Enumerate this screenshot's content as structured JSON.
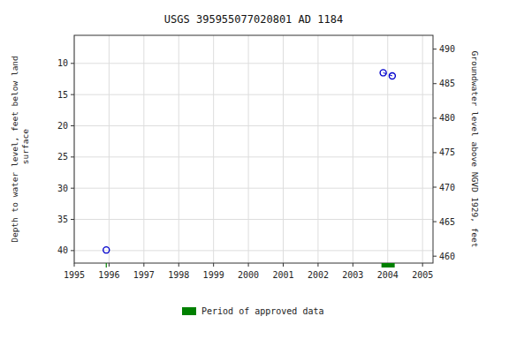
{
  "chart_data": {
    "type": "scatter",
    "title": "USGS 395955077020801 AD  1184",
    "y_label": "Depth to water level, feet below land\n surface",
    "y2_label": "Groundwater level above NGVD 1929, feet",
    "xlim": [
      1995.0,
      2005.3
    ],
    "xticks": [
      1995,
      1996,
      1997,
      1998,
      1999,
      2000,
      2001,
      2002,
      2003,
      2004,
      2005
    ],
    "ylim": [
      42.0,
      5.5
    ],
    "yticks": [
      10,
      15,
      20,
      25,
      30,
      35,
      40
    ],
    "y2lim": [
      459.0,
      492.0
    ],
    "y2ticks": [
      490,
      485,
      480,
      475,
      470,
      465,
      460
    ],
    "grid": true,
    "legend": "bottom",
    "series": [
      {
        "x": [
          1995.92,
          2003.87,
          2004.13
        ],
        "values": [
          39.9,
          11.5,
          12.0
        ],
        "color": "#0000cc",
        "marker": "circle"
      },
      {
        "type": "line",
        "x": [
          2003.87,
          2004.13
        ],
        "values": [
          11.5,
          12.0
        ],
        "color": "#0000cc",
        "line_style": "dashed"
      },
      {
        "type": "period",
        "name": "Period of approved data",
        "color": "#008000",
        "x_start": [
          1995.905,
          2003.82
        ],
        "x_end": [
          1995.935,
          2004.2
        ]
      }
    ]
  }
}
